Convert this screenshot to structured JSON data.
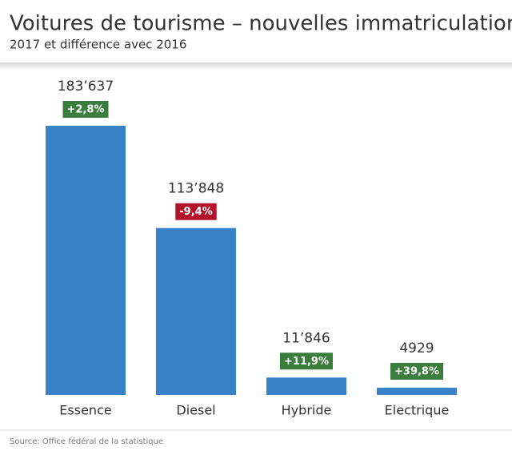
{
  "chart_data": {
    "type": "bar",
    "title": "Voitures de tourisme – nouvelles immatriculations",
    "subtitle": "2017 et différence avec 2016",
    "categories": [
      "Essence",
      "Diesel",
      "Hybride",
      "Electrique"
    ],
    "values": [
      183637,
      113848,
      11846,
      4929
    ],
    "value_labels": [
      "183’637",
      "113’848",
      "11’846",
      "4929"
    ],
    "color": "#3a82c7",
    "changes": {
      "values": [
        2.8,
        -9.4,
        11.9,
        39.8
      ],
      "value_labels": [
        "+2,8%",
        "-9,4%",
        "+11,9%",
        "+39,8%"
      ],
      "positive_color": "#3b7d3c",
      "negative_color": "#b3122a"
    },
    "source": "Source: Office fédéral de la statistique"
  }
}
